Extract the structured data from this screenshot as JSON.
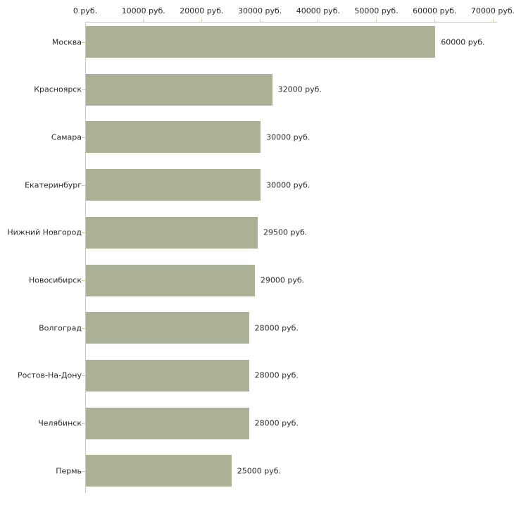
{
  "chart_data": {
    "type": "bar",
    "orientation": "horizontal",
    "title": "",
    "xlabel": "",
    "ylabel": "",
    "unit": "руб.",
    "xlim": [
      0,
      70000
    ],
    "grid": false,
    "legend": null,
    "categories": [
      "Москва",
      "Красноярск",
      "Самара",
      "Екатеринбург",
      "Нижний Новгород",
      "Новосибирск",
      "Волгоград",
      "Ростов-На-Дону",
      "Челябинск",
      "Пермь"
    ],
    "values": [
      60000,
      32000,
      30000,
      30000,
      29500,
      29000,
      28000,
      28000,
      28000,
      25000
    ],
    "value_labels": [
      "60000 руб.",
      "32000 руб.",
      "30000 руб.",
      "30000 руб.",
      "29500 руб.",
      "29000 руб.",
      "28000 руб.",
      "28000 руб.",
      "28000 руб.",
      "25000 руб."
    ],
    "x_tick_values": [
      0,
      10000,
      20000,
      30000,
      40000,
      50000,
      60000,
      70000
    ],
    "x_tick_labels": [
      "0 руб.",
      "10000 руб.",
      "20000 руб.",
      "30000 руб.",
      "40000 руб.",
      "50000 руб.",
      "60000 руб.",
      "70000 руб."
    ],
    "colors": {
      "bar_fill": "#abb194",
      "axis_line": "#c6c6c6",
      "tick_mark": "#cccc99",
      "text": "#2b2b2b"
    }
  }
}
